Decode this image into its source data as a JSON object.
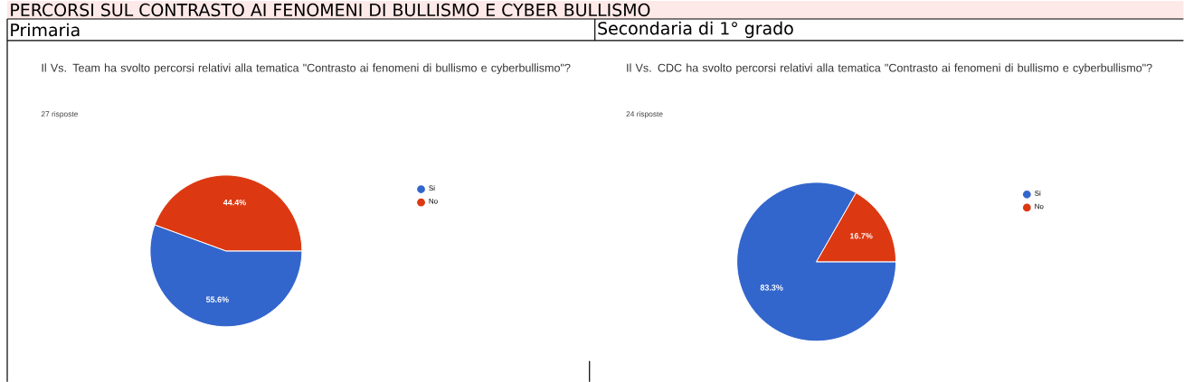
{
  "chart_data": [
    {
      "type": "pie",
      "title": "Il Vs. Team ha svolto percorsi relativi alla tematica \"Contrasto ai fenomeni di bullismo e cyberbullismo\"?",
      "subtitle": "27 risposte",
      "annotations": [
        "PERCORSI SUL CONTRASTO AI FENOMENI DI BULLISMO E CYBER BULLISMO",
        "Primaria"
      ],
      "categories": [
        "Si",
        "No"
      ],
      "values": [
        55.6,
        44.4
      ],
      "colors": [
        "#3366cc",
        "#dc3912"
      ],
      "value_labels": [
        "55.6%",
        "44.4%"
      ],
      "legend": "right"
    },
    {
      "type": "pie",
      "title": "Il Vs. CDC ha svolto percorsi relativi alla tematica \"Contrasto ai fenomeni di bullismo e cyberbullismo\"?",
      "subtitle": "24 risposte",
      "annotations": [
        "Secondaria di 1° grado"
      ],
      "categories": [
        "Si",
        "No"
      ],
      "values": [
        83.3,
        16.7
      ],
      "colors": [
        "#3366cc",
        "#dc3912"
      ],
      "value_labels": [
        "83.3%",
        "16.7%"
      ],
      "legend": "right"
    }
  ]
}
